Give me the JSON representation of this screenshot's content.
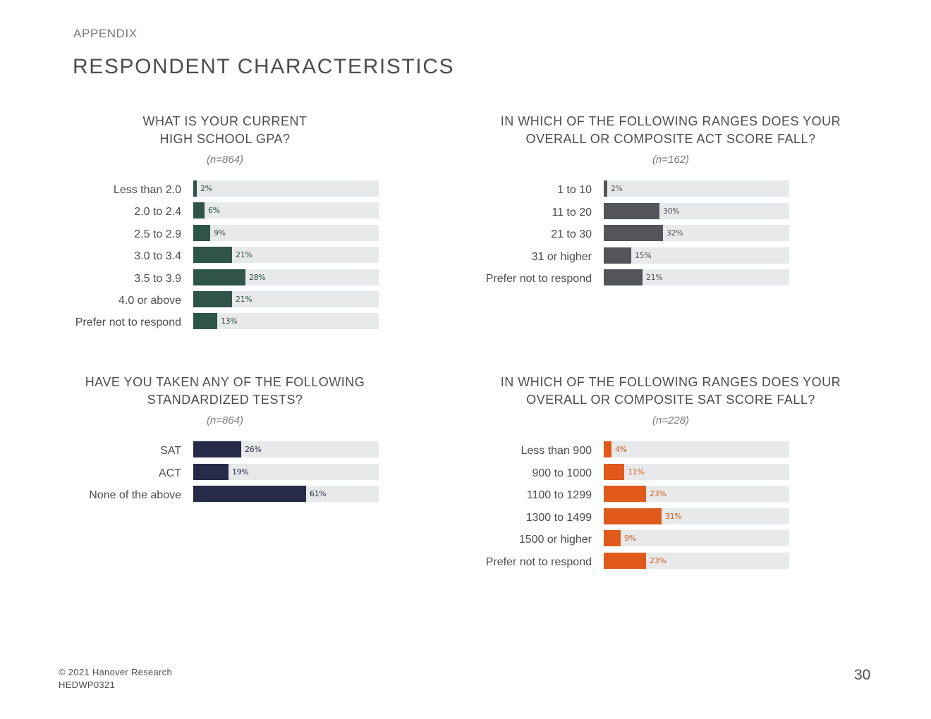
{
  "header": {
    "section_label": "APPENDIX",
    "page_title": "RESPONDENT CHARACTERISTICS"
  },
  "chart_data": [
    {
      "type": "bar",
      "orientation": "horizontal",
      "title": "WHAT IS YOUR CURRENT\nHIGH SCHOOL GPA?",
      "n_label": "(n=864)",
      "categories": [
        "Less than 2.0",
        "2.0 to 2.4",
        "2.5 to 2.9",
        "3.0 to 3.4",
        "3.5 to 3.9",
        "4.0 or above",
        "Prefer not to respond"
      ],
      "values": [
        2,
        6,
        9,
        21,
        28,
        21,
        13
      ],
      "value_labels": [
        "2%",
        "6%",
        "9%",
        "21%",
        "28%",
        "21%",
        "13%"
      ],
      "xlim": [
        0,
        100
      ],
      "color": "#2f5449",
      "label_color": "#2f5449"
    },
    {
      "type": "bar",
      "orientation": "horizontal",
      "title": "IN WHICH OF THE FOLLOWING RANGES DOES YOUR\nOVERALL OR COMPOSITE ACT SCORE FALL?",
      "n_label": "(n=162)",
      "categories": [
        "1 to 10",
        "11 to 20",
        "21 to 30",
        "31 or higher",
        "Prefer not to respond"
      ],
      "values": [
        2,
        30,
        32,
        15,
        21
      ],
      "value_labels": [
        "2%",
        "30%",
        "32%",
        "15%",
        "21%"
      ],
      "xlim": [
        0,
        100
      ],
      "color": "#54555a",
      "label_color": "#54555a"
    },
    {
      "type": "bar",
      "orientation": "horizontal",
      "title": "HAVE YOU TAKEN ANY OF THE FOLLOWING\nSTANDARDIZED TESTS?",
      "n_label": "(n=864)",
      "categories": [
        "SAT",
        "ACT",
        "None of the above"
      ],
      "values": [
        26,
        19,
        61
      ],
      "value_labels": [
        "26%",
        "19%",
        "61%"
      ],
      "xlim": [
        0,
        100
      ],
      "color": "#262b47",
      "label_color": "#262b47"
    },
    {
      "type": "bar",
      "orientation": "horizontal",
      "title": "IN WHICH OF THE FOLLOWING RANGES DOES YOUR\nOVERALL OR COMPOSITE SAT SCORE FALL?",
      "n_label": "(n=228)",
      "categories": [
        "Less than 900",
        "900 to 1000",
        "1100 to 1299",
        "1300 to 1499",
        "1500 or higher",
        "Prefer not to respond"
      ],
      "values": [
        4,
        11,
        23,
        31,
        9,
        23
      ],
      "value_labels": [
        "4%",
        "11%",
        "23%",
        "31%",
        "9%",
        "23%"
      ],
      "xlim": [
        0,
        100
      ],
      "color": "#e05a1c",
      "label_color": "#e05a1c"
    }
  ],
  "footer": {
    "copyright": "© 2021 Hanover Research",
    "code": "HEDWP0321",
    "page_number": "30"
  }
}
